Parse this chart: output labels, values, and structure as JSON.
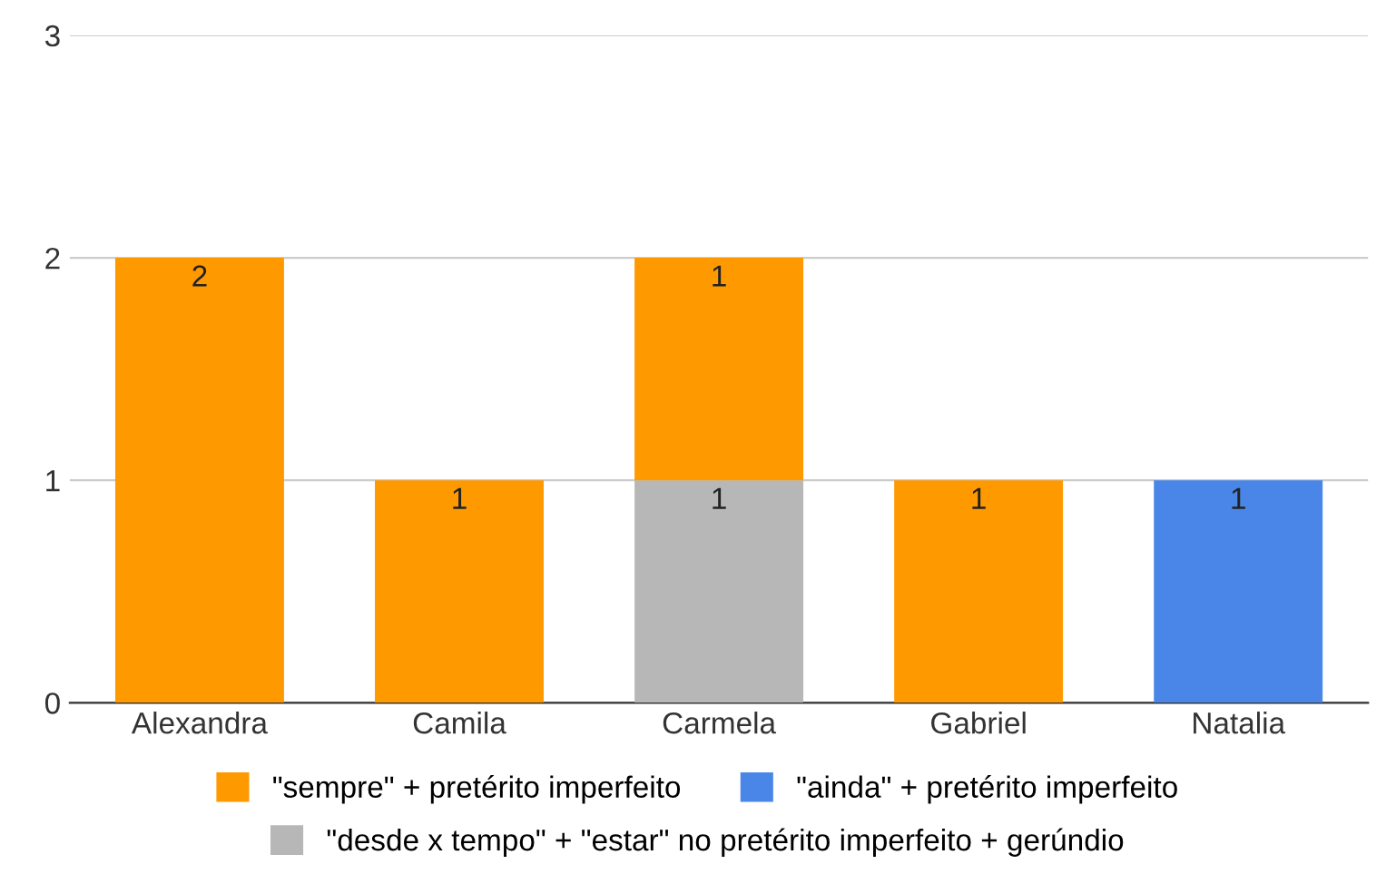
{
  "chart_data": {
    "type": "bar",
    "stacked": true,
    "categories": [
      "Alexandra",
      "Camila",
      "Carmela",
      "Gabriel",
      "Natalia"
    ],
    "series": [
      {
        "name": "\"desde x tempo\" + \"estar\" no pretérito imperfeito + gerúndio",
        "color": "#b7b7b7",
        "values": [
          null,
          null,
          1,
          null,
          null
        ]
      },
      {
        "name": "\"sempre\" + pretérito imperfeito",
        "color": "#ff9900",
        "values": [
          2,
          1,
          1,
          1,
          null
        ]
      },
      {
        "name": "\"ainda\" + pretérito imperfeito",
        "color": "#4a86e8",
        "values": [
          null,
          null,
          null,
          null,
          1
        ]
      }
    ],
    "ylim": [
      0,
      3
    ],
    "yticks": [
      0,
      1,
      2,
      3
    ],
    "grid": "y",
    "legend": "bottom",
    "data_labels": true
  }
}
